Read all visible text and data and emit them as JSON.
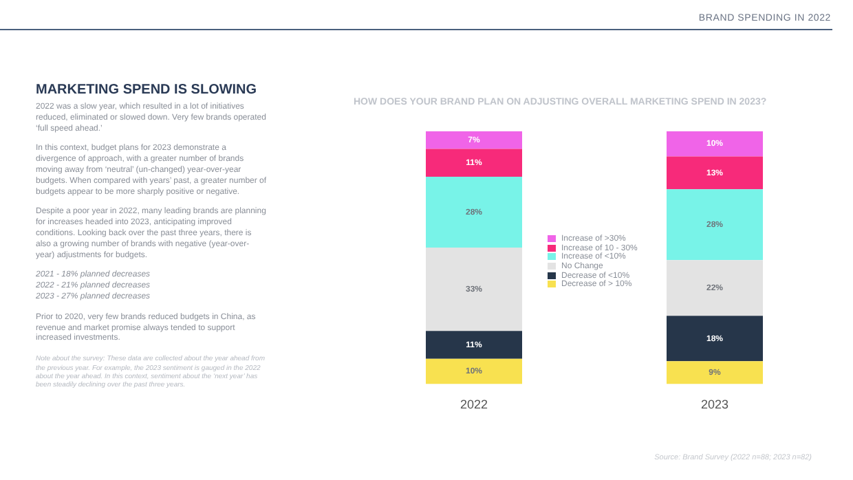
{
  "chart_data": {
    "type": "bar",
    "stacked": true,
    "title": "HOW DOES YOUR BRAND PLAN ON ADJUSTING OVERALL MARKETING SPEND IN 2023?",
    "categories": [
      "2022",
      "2023"
    ],
    "series": [
      {
        "name": "Decrease of > 10%",
        "color": "#f8e150",
        "values": [
          10,
          9
        ],
        "value_labels": [
          "10%",
          "9%"
        ]
      },
      {
        "name": "Decrease of <10%",
        "color": "#26364a",
        "values": [
          11,
          18
        ],
        "value_labels": [
          "11%",
          "18%"
        ]
      },
      {
        "name": "No Change",
        "color": "#e3e3e3",
        "values": [
          33,
          22
        ],
        "value_labels": [
          "33%",
          "22%"
        ]
      },
      {
        "name": "Increase of <10%",
        "color": "#78f3e8",
        "values": [
          28,
          28
        ],
        "value_labels": [
          "28%",
          "28%"
        ]
      },
      {
        "name": "Increase of 10 - 30%",
        "color": "#f72a7a",
        "values": [
          11,
          13
        ],
        "value_labels": [
          "11%",
          "13%"
        ]
      },
      {
        "name": "Increase of >30%",
        "color": "#f064e8",
        "values": [
          7,
          10
        ],
        "value_labels": [
          "7%",
          "10%"
        ]
      }
    ],
    "ylim": [
      0,
      100
    ],
    "tick_labels": "x",
    "grid": false,
    "legend": "center",
    "annotations": [
      "BRAND SPENDING IN 2022",
      "MARKETING SPEND IS SLOWING",
      "2022 was a slow year, which resulted in a lot of initiatives reduced, eliminated or slowed down. Very few brands operated ‘full speed ahead.’",
      "In this context, budget plans for 2023 demonstrate a divergence of approach, with a greater number of brands moving away from ‘neutral’ (un-changed) year-over-year budgets. When compared with years’ past, a greater number of budgets appear to be more sharply positive or negative.",
      "Despite a poor year in 2022, many leading brands are planning for increases headed into 2023, anticipating improved conditions. Looking back over the past three years, there is also a growing number of brands with negative (year-over-year) adjustments for budgets.",
      "2021 - 18% planned decreases\n2022 - 21% planned decreases\n2023 - 27% planned decreases",
      "Prior to 2020, very few brands reduced budgets in China, as revenue and market promise always tended to support increased investments.",
      "Note about the survey: These data are collected about the year ahead from the previous year. For example, the 2023 sentiment is gauged in the 2022 about the year ahead. In this context, sentiment about the ‘next year’ has been steadily declining over the past three years.",
      "Source: Brand Survey (2022 n=88; 2023 n=82)"
    ]
  }
}
